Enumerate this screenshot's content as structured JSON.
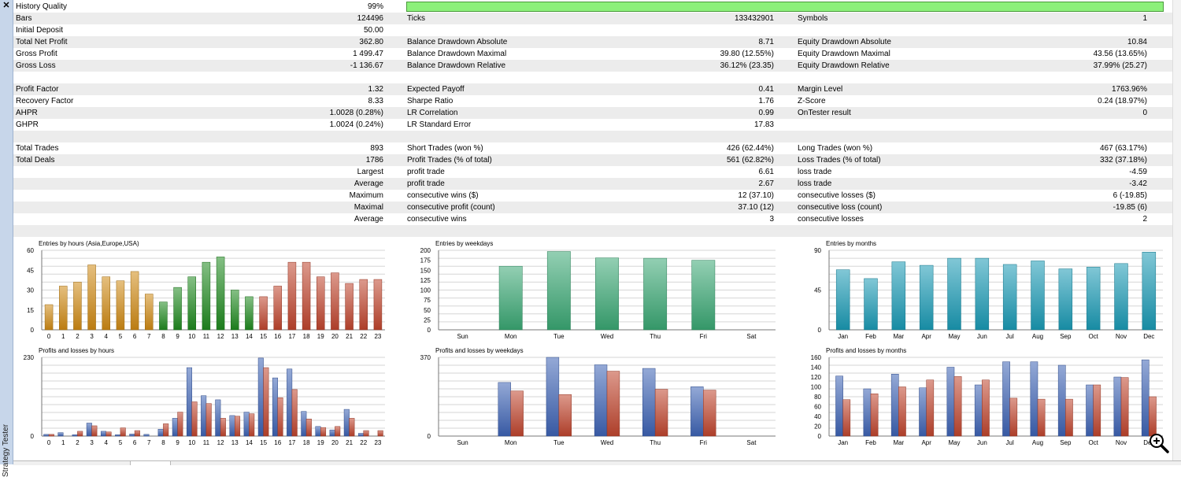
{
  "window": {
    "side_title": "Strategy Tester",
    "close_glyph": "✕"
  },
  "stats": {
    "history_quality": {
      "label": "History Quality",
      "value": "99%",
      "fraction": 0.99
    },
    "rows": [
      [
        [
          "Bars",
          "124496"
        ],
        [
          "Ticks",
          "133432901"
        ],
        [
          "Symbols",
          "1"
        ]
      ],
      [
        [
          "Initial Deposit",
          "50.00"
        ],
        [
          "",
          ""
        ],
        [
          "",
          ""
        ]
      ],
      [
        [
          "Total Net Profit",
          "362.80"
        ],
        [
          "Balance Drawdown Absolute",
          "8.71"
        ],
        [
          "Equity Drawdown Absolute",
          "10.84"
        ]
      ],
      [
        [
          "Gross Profit",
          "1 499.47"
        ],
        [
          "Balance Drawdown Maximal",
          "39.80 (12.55%)"
        ],
        [
          "Equity Drawdown Maximal",
          "43.56 (13.65%)"
        ]
      ],
      [
        [
          "Gross Loss",
          "-1 136.67"
        ],
        [
          "Balance Drawdown Relative",
          "36.12% (23.35)"
        ],
        [
          "Equity Drawdown Relative",
          "37.99% (25.27)"
        ]
      ],
      [
        [
          "",
          ""
        ],
        [
          "",
          ""
        ],
        [
          "",
          ""
        ]
      ],
      [
        [
          "Profit Factor",
          "1.32"
        ],
        [
          "Expected Payoff",
          "0.41"
        ],
        [
          "Margin Level",
          "1763.96%"
        ]
      ],
      [
        [
          "Recovery Factor",
          "8.33"
        ],
        [
          "Sharpe Ratio",
          "1.76"
        ],
        [
          "Z-Score",
          "0.24 (18.97%)"
        ]
      ],
      [
        [
          "AHPR",
          "1.0028 (0.28%)"
        ],
        [
          "LR Correlation",
          "0.99"
        ],
        [
          "OnTester result",
          "0"
        ]
      ],
      [
        [
          "GHPR",
          "1.0024 (0.24%)"
        ],
        [
          "LR Standard Error",
          "17.83"
        ],
        [
          "",
          ""
        ]
      ],
      [
        [
          "",
          ""
        ],
        [
          "",
          ""
        ],
        [
          "",
          ""
        ]
      ],
      [
        [
          "Total Trades",
          "893"
        ],
        [
          "Short Trades (won %)",
          "426 (62.44%)"
        ],
        [
          "Long Trades (won %)",
          "467 (63.17%)"
        ]
      ],
      [
        [
          "Total Deals",
          "1786"
        ],
        [
          "Profit Trades (% of total)",
          "561 (62.82%)"
        ],
        [
          "Loss Trades (% of total)",
          "332 (37.18%)"
        ]
      ]
    ],
    "split_rows": [
      [
        "Largest",
        "profit trade",
        "6.61",
        "loss trade",
        "-4.59"
      ],
      [
        "Average",
        "profit trade",
        "2.67",
        "loss trade",
        "-3.42"
      ],
      [
        "Maximum",
        "consecutive wins ($)",
        "12 (37.10)",
        "consecutive losses ($)",
        "6 (-19.85)"
      ],
      [
        "Maximal",
        "consecutive profit (count)",
        "37.10 (12)",
        "consecutive loss (count)",
        "-19.85 (6)"
      ],
      [
        "Average",
        "consecutive wins",
        "3",
        "consecutive losses",
        "2"
      ]
    ]
  },
  "colors": {
    "asia": "#d08a14",
    "europe": "#1f8a1f",
    "usa": "#c0452e",
    "weekday": "#3aa874",
    "months": "#1a9ab5",
    "profit": "#3d63b5",
    "loss": "#c0452e",
    "grid": "#d6d6d6"
  },
  "icons": {
    "zoom": "magnifier-zoom-icon"
  },
  "chart_data": [
    {
      "type": "bar",
      "title": "Entries by hours (Asia,Europe,USA)",
      "categories": [
        "0",
        "1",
        "2",
        "3",
        "4",
        "5",
        "6",
        "7",
        "8",
        "9",
        "10",
        "11",
        "12",
        "13",
        "14",
        "15",
        "16",
        "17",
        "18",
        "19",
        "20",
        "21",
        "22",
        "23"
      ],
      "values": [
        19,
        33,
        36,
        49,
        40,
        37,
        44,
        27,
        21,
        32,
        40,
        51,
        55,
        30,
        25,
        25,
        33,
        51,
        51,
        40,
        43,
        35,
        38,
        38
      ],
      "ylim": [
        0,
        60
      ],
      "yticks": [
        "0",
        "15",
        "30",
        "45",
        "60"
      ]
    },
    {
      "type": "bar",
      "title": "Entries by weekdays",
      "categories": [
        "Sun",
        "Mon",
        "Tue",
        "Wed",
        "Thu",
        "Fri",
        "Sat"
      ],
      "values": [
        0,
        160,
        197,
        181,
        180,
        175,
        0
      ],
      "ylim": [
        0,
        200
      ],
      "yticks": [
        "0",
        "25",
        "50",
        "75",
        "100",
        "125",
        "150",
        "175",
        "200"
      ]
    },
    {
      "type": "bar",
      "title": "Entries by months",
      "categories": [
        "Jan",
        "Feb",
        "Mar",
        "Apr",
        "May",
        "Jun",
        "Jul",
        "Aug",
        "Sep",
        "Oct",
        "Nov",
        "Dec"
      ],
      "values": [
        68,
        58,
        77,
        73,
        81,
        81,
        74,
        78,
        69,
        71,
        75,
        88
      ],
      "ylim": [
        0,
        90
      ],
      "yticks": [
        "0",
        "45",
        "90"
      ]
    },
    {
      "type": "bar",
      "title": "Profits and losses by hours",
      "categories": [
        "0",
        "1",
        "2",
        "3",
        "4",
        "5",
        "6",
        "7",
        "8",
        "9",
        "10",
        "11",
        "12",
        "13",
        "14",
        "15",
        "16",
        "17",
        "18",
        "19",
        "20",
        "21",
        "22",
        "23"
      ],
      "series": [
        {
          "values": [
            5,
            10,
            4,
            38,
            14,
            4,
            6,
            5,
            20,
            52,
            200,
            118,
            106,
            60,
            70,
            228,
            170,
            196,
            72,
            28,
            18,
            78,
            8,
            0
          ]
        },
        {
          "values": [
            5,
            0,
            14,
            30,
            12,
            24,
            16,
            0,
            36,
            70,
            100,
            95,
            52,
            58,
            65,
            200,
            112,
            136,
            50,
            25,
            28,
            52,
            16,
            16
          ]
        }
      ],
      "ylim": [
        0,
        230
      ],
      "yticks": [
        "0",
        "230"
      ]
    },
    {
      "type": "bar",
      "title": "Profits and losses by weekdays",
      "categories": [
        "Sun",
        "Mon",
        "Tue",
        "Wed",
        "Thu",
        "Fri",
        "Sat"
      ],
      "series": [
        {
          "values": [
            0,
            252,
            370,
            335,
            318,
            232,
            0
          ]
        },
        {
          "values": [
            0,
            212,
            195,
            305,
            220,
            216,
            0
          ]
        }
      ],
      "ylim": [
        0,
        370
      ],
      "yticks": [
        "0",
        "370"
      ]
    },
    {
      "type": "bar",
      "title": "Profits and losses by months",
      "categories": [
        "Jan",
        "Feb",
        "Mar",
        "Apr",
        "May",
        "Jun",
        "Jul",
        "Aug",
        "Sep",
        "Oct",
        "Nov",
        "Dec"
      ],
      "series": [
        {
          "values": [
            122,
            96,
            126,
            98,
            140,
            104,
            151,
            151,
            144,
            104,
            120,
            155
          ]
        },
        {
          "values": [
            74,
            86,
            100,
            114,
            121,
            114,
            77,
            75,
            75,
            104,
            119,
            80
          ]
        }
      ],
      "ylim": [
        0,
        160
      ],
      "yticks": [
        "0",
        "20",
        "40",
        "60",
        "80",
        "100",
        "120",
        "140",
        "160"
      ]
    }
  ]
}
